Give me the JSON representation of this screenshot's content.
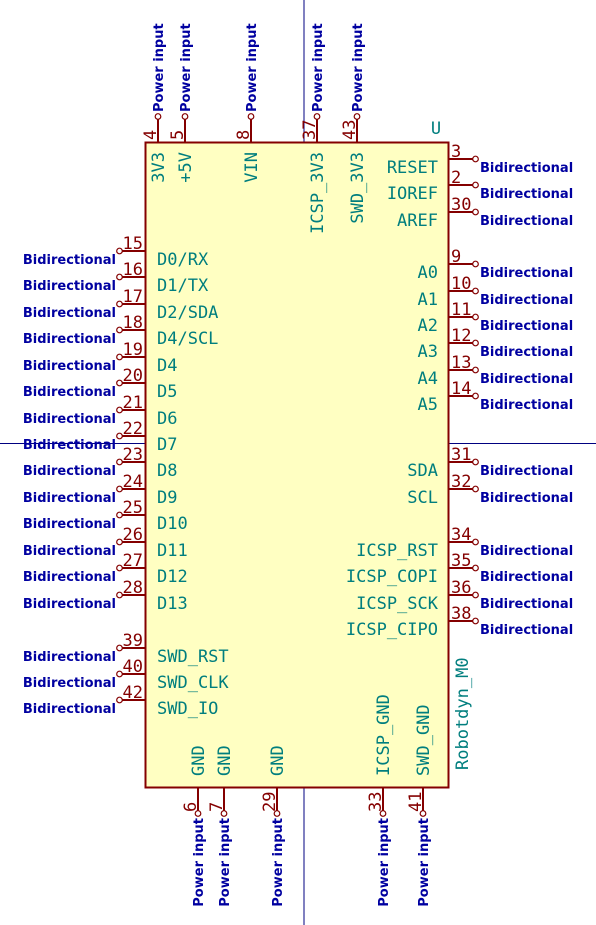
{
  "component": {
    "reference": "U",
    "value": "Robotdyn_M0",
    "colors": {
      "body_stroke": "#840000",
      "body_fill": "#ffffc2",
      "pin_number": "#840000",
      "pin_name": "#007e7e",
      "electrical_type": "#0000a0",
      "crosshair": "#000080"
    }
  },
  "pins": {
    "top": [
      {
        "num": "4",
        "name": "3V3",
        "type": "Power input"
      },
      {
        "num": "5",
        "name": "+5V",
        "type": "Power input"
      },
      {
        "num": "8",
        "name": "VIN",
        "type": "Power input"
      },
      {
        "num": "37",
        "name": "ICSP_3V3",
        "type": "Power input"
      },
      {
        "num": "43",
        "name": "SWD_3V3",
        "type": "Power input"
      }
    ],
    "left": [
      {
        "num": "15",
        "name": "D0/RX",
        "type": "Bidirectional"
      },
      {
        "num": "16",
        "name": "D1/TX",
        "type": "Bidirectional"
      },
      {
        "num": "17",
        "name": "D2/SDA",
        "type": "Bidirectional"
      },
      {
        "num": "18",
        "name": "D4/SCL",
        "type": "Bidirectional"
      },
      {
        "num": "19",
        "name": "D4",
        "type": "Bidirectional"
      },
      {
        "num": "20",
        "name": "D5",
        "type": "Bidirectional"
      },
      {
        "num": "21",
        "name": "D6",
        "type": "Bidirectional"
      },
      {
        "num": "22",
        "name": "D7",
        "type": "Bidirectional"
      },
      {
        "num": "23",
        "name": "D8",
        "type": "Bidirectional"
      },
      {
        "num": "24",
        "name": "D9",
        "type": "Bidirectional"
      },
      {
        "num": "25",
        "name": "D10",
        "type": "Bidirectional"
      },
      {
        "num": "26",
        "name": "D11",
        "type": "Bidirectional"
      },
      {
        "num": "27",
        "name": "D12",
        "type": "Bidirectional"
      },
      {
        "num": "28",
        "name": "D13",
        "type": "Bidirectional"
      },
      {
        "num": "39",
        "name": "SWD_RST",
        "type": "Bidirectional"
      },
      {
        "num": "40",
        "name": "SWD_CLK",
        "type": "Bidirectional"
      },
      {
        "num": "42",
        "name": "SWD_IO",
        "type": "Bidirectional"
      }
    ],
    "right": [
      {
        "num": "3",
        "name": "RESET",
        "type": "Bidirectional"
      },
      {
        "num": "2",
        "name": "IOREF",
        "type": "Bidirectional"
      },
      {
        "num": "30",
        "name": "AREF",
        "type": "Bidirectional"
      },
      {
        "num": "9",
        "name": "A0",
        "type": "Bidirectional"
      },
      {
        "num": "10",
        "name": "A1",
        "type": "Bidirectional"
      },
      {
        "num": "11",
        "name": "A2",
        "type": "Bidirectional"
      },
      {
        "num": "12",
        "name": "A3",
        "type": "Bidirectional"
      },
      {
        "num": "13",
        "name": "A4",
        "type": "Bidirectional"
      },
      {
        "num": "14",
        "name": "A5",
        "type": "Bidirectional"
      },
      {
        "num": "31",
        "name": "SDA",
        "type": "Bidirectional"
      },
      {
        "num": "32",
        "name": "SCL",
        "type": "Bidirectional"
      },
      {
        "num": "34",
        "name": "ICSP_RST",
        "type": "Bidirectional"
      },
      {
        "num": "35",
        "name": "ICSP_COPI",
        "type": "Bidirectional"
      },
      {
        "num": "36",
        "name": "ICSP_SCK",
        "type": "Bidirectional"
      },
      {
        "num": "38",
        "name": "ICSP_CIPO",
        "type": "Bidirectional"
      }
    ],
    "bottom": [
      {
        "num": "6",
        "name": "GND",
        "type": "Power input"
      },
      {
        "num": "7",
        "name": "GND",
        "type": "Power input"
      },
      {
        "num": "29",
        "name": "GND",
        "type": "Power input"
      },
      {
        "num": "33",
        "name": "ICSP_GND",
        "type": "Power input"
      },
      {
        "num": "41",
        "name": "SWD_GND",
        "type": "Power input"
      }
    ]
  }
}
